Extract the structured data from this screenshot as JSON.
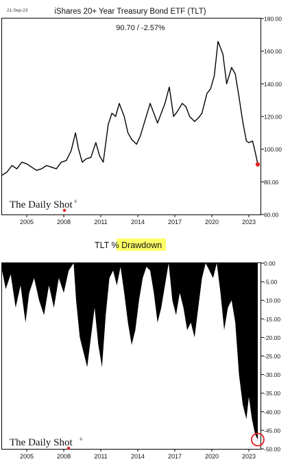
{
  "date_stamp": "21-Sep-23",
  "watermark": "The Daily Shot",
  "watermark_mark": "®",
  "chart_data": [
    {
      "type": "line",
      "title": "iShares 20+ Year Treasury Bond ETF (TLT)",
      "subtitle": "90.70  /  -2.57%",
      "xlabel": "",
      "ylabel": "",
      "x_tick_labels": [
        "2005",
        "2008",
        "2011",
        "2014",
        "2017",
        "2020",
        "2023"
      ],
      "x_tick_values": [
        2005,
        2008,
        2011,
        2014,
        2017,
        2020,
        2023
      ],
      "xlim": [
        2003.0,
        2024.0
      ],
      "ylim": [
        60,
        180
      ],
      "y_tick_values": [
        60,
        80,
        100,
        120,
        140,
        160,
        180
      ],
      "y_tick_labels": [
        "60.00",
        "80.00",
        "100.00",
        "120.00",
        "140.00",
        "160.00",
        "180.00"
      ],
      "grid": false,
      "line_color": "#000000",
      "last_point_color": "#e02020",
      "series": [
        {
          "x": [
            2003.0,
            2003.4,
            2003.8,
            2004.2,
            2004.6,
            2005.0,
            2005.4,
            2005.8,
            2006.2,
            2006.6,
            2007.0,
            2007.4,
            2007.8,
            2008.2,
            2008.6,
            2008.95,
            2009.2,
            2009.5,
            2009.8,
            2010.2,
            2010.6,
            2010.9,
            2011.2,
            2011.6,
            2011.9,
            2012.2,
            2012.5,
            2012.9,
            2013.2,
            2013.5,
            2013.9,
            2014.2,
            2014.6,
            2015.0,
            2015.3,
            2015.6,
            2015.9,
            2016.2,
            2016.55,
            2016.9,
            2017.2,
            2017.6,
            2017.9,
            2018.2,
            2018.6,
            2018.9,
            2019.2,
            2019.6,
            2019.9,
            2020.2,
            2020.5,
            2020.9,
            2021.2,
            2021.6,
            2021.9,
            2022.2,
            2022.5,
            2022.8,
            2023.0,
            2023.3,
            2023.55,
            2023.72
          ],
          "values": [
            84,
            86,
            90,
            88,
            92,
            91,
            89,
            87,
            88,
            90,
            89,
            88,
            92,
            93,
            99,
            110,
            100,
            92,
            94,
            95,
            104,
            96,
            92,
            115,
            122,
            120,
            128,
            120,
            110,
            106,
            103,
            108,
            118,
            128,
            122,
            116,
            122,
            128,
            138,
            120,
            123,
            128,
            126,
            120,
            117,
            119,
            122,
            134,
            137,
            145,
            166,
            158,
            140,
            150,
            146,
            132,
            117,
            105,
            104,
            105,
            97,
            90.7
          ]
        }
      ]
    },
    {
      "type": "area",
      "title": "TLT % Drawdown",
      "title_plain": "TLT % ",
      "title_highlight": "Drawdown",
      "highlight_color": "#ffff66",
      "xlabel": "",
      "ylabel": "",
      "x_tick_labels": [
        "2005",
        "2008",
        "2011",
        "2014",
        "2017",
        "2020",
        "2023"
      ],
      "x_tick_values": [
        2005,
        2008,
        2011,
        2014,
        2017,
        2020,
        2023
      ],
      "xlim": [
        2003.0,
        2024.0
      ],
      "ylim": [
        -50,
        0
      ],
      "y_tick_values": [
        0,
        -5,
        -10,
        -15,
        -20,
        -25,
        -30,
        -35,
        -40,
        -45,
        -50
      ],
      "y_tick_labels": [
        "0.00",
        "-5.00",
        "-10.00",
        "-15.00",
        "-20.00",
        "-25.00",
        "-30.00",
        "-35.00",
        "-40.00",
        "-45.00",
        "-50.00"
      ],
      "grid": false,
      "fill_color": "#000000",
      "annotation_circle_color": "#e02020",
      "series": [
        {
          "x": [
            2003.0,
            2003.3,
            2003.7,
            2004.1,
            2004.5,
            2004.9,
            2005.2,
            2005.6,
            2006.0,
            2006.4,
            2006.8,
            2007.2,
            2007.6,
            2008.0,
            2008.4,
            2008.8,
            2009.0,
            2009.3,
            2009.6,
            2009.9,
            2010.2,
            2010.5,
            2010.8,
            2011.1,
            2011.4,
            2011.7,
            2012.0,
            2012.3,
            2012.6,
            2012.9,
            2013.2,
            2013.5,
            2013.8,
            2014.1,
            2014.4,
            2014.7,
            2015.0,
            2015.3,
            2015.6,
            2015.9,
            2016.2,
            2016.5,
            2016.8,
            2017.1,
            2017.4,
            2017.7,
            2018.0,
            2018.3,
            2018.6,
            2018.9,
            2019.2,
            2019.5,
            2019.8,
            2020.1,
            2020.4,
            2020.7,
            2021.0,
            2021.3,
            2021.6,
            2021.9,
            2022.2,
            2022.5,
            2022.8,
            2023.0,
            2023.25,
            2023.5,
            2023.72
          ],
          "values": [
            -2,
            -7,
            -3,
            -12,
            -6,
            -16,
            -8,
            -4,
            -10,
            -14,
            -6,
            -12,
            -4,
            -8,
            -2,
            0,
            -10,
            -20,
            -24,
            -28,
            -20,
            -12,
            -22,
            -28,
            -14,
            -4,
            -2,
            -6,
            -1,
            -8,
            -16,
            -22,
            -18,
            -10,
            -4,
            -1,
            -2,
            -8,
            -16,
            -12,
            -6,
            0,
            -10,
            -14,
            -8,
            -12,
            -18,
            -16,
            -20,
            -12,
            -4,
            0,
            -2,
            -4,
            0,
            -8,
            -18,
            -12,
            -10,
            -16,
            -30,
            -38,
            -42,
            -36,
            -42,
            -46,
            -47.5
          ]
        }
      ]
    }
  ]
}
